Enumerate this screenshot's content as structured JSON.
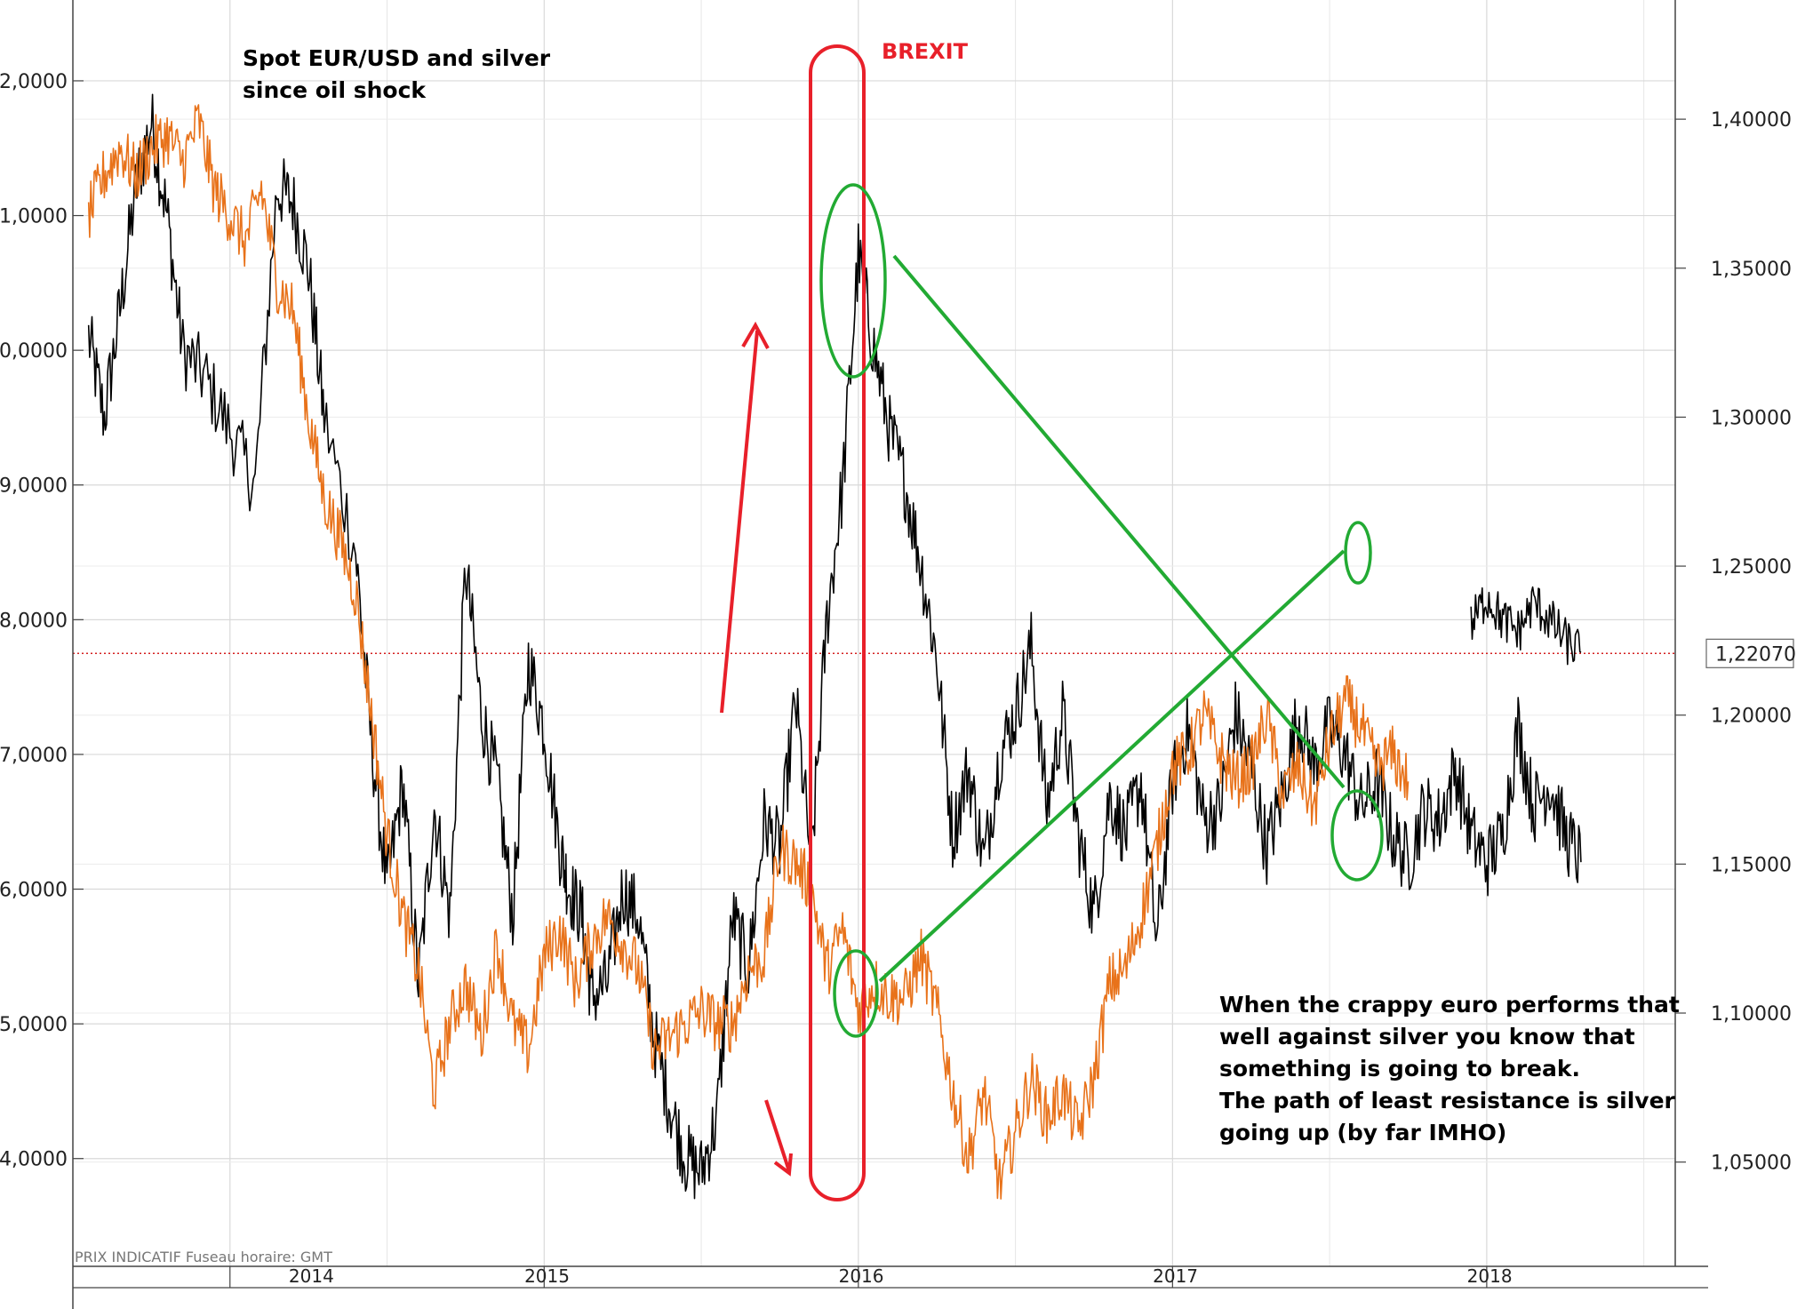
{
  "chart_data": {
    "type": "line",
    "title_lines": [
      "Spot EUR/USD and silver",
      "since oil shock"
    ],
    "footer": "PRIX INDICATIF   Fuseau horaire: GMT",
    "x_labels": [
      "2014",
      "2015",
      "2016",
      "2017",
      "2018"
    ],
    "x_range": [
      2013.5,
      2018.6
    ],
    "y_left": {
      "ticks": [
        "4,0000",
        "5,0000",
        "6,0000",
        "7,0000",
        "8,0000",
        "9,0000",
        "0,0000",
        "1,0000",
        "2,0000"
      ],
      "tick_values": [
        14,
        15,
        16,
        17,
        18,
        19,
        20,
        21,
        22
      ],
      "range": [
        13.2,
        22.6
      ]
    },
    "y_right": {
      "ticks": [
        "1,05000",
        "1,10000",
        "1,15000",
        "1,20000",
        "1,25000",
        "1,30000",
        "1,35000",
        "1,40000"
      ],
      "tick_values": [
        1.05,
        1.1,
        1.15,
        1.2,
        1.25,
        1.3,
        1.35,
        1.4
      ],
      "range": [
        1.015,
        1.44
      ]
    },
    "last_value_label": "1,22070",
    "last_value": 1.2207,
    "series": [
      {
        "axis": "left",
        "color": "#000000",
        "x": [
          2013.55,
          2013.6,
          2013.65,
          2013.7,
          2013.75,
          2013.8,
          2013.85,
          2013.92,
          2014.0,
          2014.08,
          2014.15,
          2014.2,
          2014.25,
          2014.3,
          2014.4,
          2014.45,
          2014.5,
          2014.55,
          2014.6,
          2014.65,
          2014.7,
          2014.75,
          2014.8,
          2014.85,
          2014.9,
          2014.95,
          2015.0,
          2015.05,
          2015.08,
          2015.12,
          2015.15,
          2015.2,
          2015.25,
          2015.3,
          2015.35,
          2015.4,
          2015.45,
          2015.5,
          2015.55,
          2015.6,
          2015.65,
          2015.7,
          2015.75,
          2015.8,
          2015.85,
          2015.9,
          2015.95,
          2016.0,
          2016.05,
          2016.1,
          2016.15,
          2016.2,
          2016.25,
          2016.3,
          2016.35,
          2016.4,
          2016.45,
          2016.5,
          2016.55,
          2016.6,
          2016.65,
          2016.7,
          2016.75,
          2016.8,
          2016.85,
          2016.9,
          2016.95,
          2017.0,
          2017.05,
          2017.1,
          2017.15,
          2017.2,
          2017.25,
          2017.3,
          2017.35,
          2017.4,
          2017.45,
          2017.5,
          2017.55,
          2017.6,
          2017.65,
          2017.7,
          2017.75,
          2017.8,
          2017.85,
          2017.9,
          2017.95,
          2018.0,
          2018.05,
          2018.1,
          2018.15,
          2018.2,
          2018.25,
          2018.3
        ],
        "y": [
          20.1,
          19.5,
          20.3,
          21.2,
          21.7,
          21.0,
          20.0,
          19.8,
          19.4,
          19.0,
          21.2,
          21.1,
          20.6,
          19.5,
          18.5,
          17.1,
          16.0,
          16.8,
          15.3,
          16.6,
          15.8,
          18.4,
          17.3,
          16.8,
          15.8,
          17.7,
          17.2,
          16.3,
          16.0,
          15.8,
          15.2,
          15.3,
          16.0,
          15.8,
          14.9,
          14.4,
          14.0,
          13.9,
          14.3,
          15.8,
          15.4,
          16.5,
          16.3,
          17.4,
          16.2,
          18.0,
          19.0,
          20.7,
          20.0,
          19.4,
          19.0,
          18.4,
          17.7,
          16.4,
          16.9,
          16.2,
          17.0,
          17.3,
          17.8,
          16.6,
          17.3,
          16.4,
          15.8,
          16.7,
          16.4,
          16.8,
          15.6,
          16.8,
          17.2,
          16.5,
          16.6,
          17.3,
          16.9,
          16.3,
          16.7,
          17.3,
          16.9,
          17.2,
          17.0,
          16.6,
          16.8,
          16.4,
          16.2,
          16.6,
          16.5,
          16.9,
          16.4,
          16.2,
          16.4,
          17.2,
          16.6,
          16.8,
          16.4,
          16.2
        ],
        "jitter": 0.28
      },
      {
        "axis": "left",
        "color": "#e8721a",
        "x": [
          2013.55,
          2013.6,
          2013.65,
          2013.7,
          2013.75,
          2013.8,
          2013.85,
          2013.9,
          2013.95,
          2014.0,
          2014.05,
          2014.1,
          2014.15,
          2014.2,
          2014.25,
          2014.3,
          2014.35,
          2014.4,
          2014.45,
          2014.5,
          2014.55,
          2014.6,
          2014.65,
          2014.7,
          2014.75,
          2014.8,
          2014.85,
          2014.9,
          2014.95,
          2015.0,
          2015.05,
          2015.1,
          2015.15,
          2015.2,
          2015.25,
          2015.3,
          2015.35,
          2015.4,
          2015.45,
          2015.5,
          2015.55,
          2015.6,
          2015.65,
          2015.7,
          2015.75,
          2015.8,
          2015.85,
          2015.9,
          2015.95,
          2016.0,
          2016.05,
          2016.1,
          2016.15,
          2016.2,
          2016.25,
          2016.3,
          2016.35,
          2016.4,
          2016.45,
          2016.5,
          2016.55,
          2016.6,
          2016.65,
          2016.7,
          2016.75,
          2016.8,
          2016.85,
          2016.9,
          2016.95,
          2017.0,
          2017.05,
          2017.1,
          2017.15,
          2017.2,
          2017.25,
          2017.3,
          2017.35,
          2017.4,
          2017.45,
          2017.5,
          2017.55,
          2017.6,
          2017.65,
          2017.7,
          2017.75
        ],
        "y": [
          21.0,
          21.3,
          21.5,
          21.3,
          21.5,
          21.6,
          21.4,
          21.7,
          21.2,
          21.0,
          20.8,
          21.2,
          20.5,
          20.3,
          19.5,
          18.9,
          18.6,
          18.2,
          17.3,
          16.4,
          15.8,
          15.4,
          14.5,
          15.0,
          15.3,
          14.9,
          15.6,
          15.0,
          14.8,
          15.5,
          15.7,
          15.3,
          15.6,
          15.8,
          15.6,
          15.4,
          14.8,
          14.9,
          15.0,
          15.1,
          15.0,
          15.0,
          15.4,
          15.5,
          16.3,
          16.2,
          16.0,
          15.4,
          15.7,
          15.1,
          15.3,
          15.2,
          15.2,
          15.5,
          15.1,
          14.5,
          14.0,
          14.5,
          13.8,
          14.2,
          14.6,
          14.3,
          14.5,
          14.2,
          14.6,
          15.3,
          15.4,
          15.8,
          16.3,
          16.9,
          17.0,
          17.3,
          17.0,
          16.8,
          16.9,
          17.3,
          16.7,
          16.9,
          16.6,
          17.1,
          17.4,
          17.2,
          16.9,
          17.0,
          16.8
        ],
        "jitter": 0.22
      },
      {
        "axis": "right",
        "color": "#000000",
        "x": [
          2017.95,
          2018.0,
          2018.05,
          2018.1,
          2018.15,
          2018.2,
          2018.25,
          2018.3
        ],
        "y": [
          1.23,
          1.24,
          1.232,
          1.228,
          1.238,
          1.232,
          1.225,
          1.221
        ],
        "jitter": 0.0
      }
    ],
    "annotations": {
      "brexit_label": "BREXIT",
      "comment_lines": [
        "When the crappy euro performs that",
        "well against silver you know that",
        "something is going to break.",
        "The path of least resistance is silver",
        "going up (by far IMHO)"
      ]
    }
  }
}
